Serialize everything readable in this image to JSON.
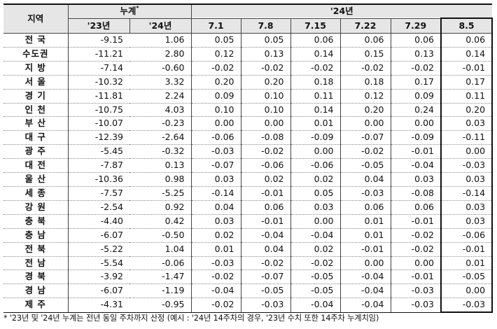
{
  "header": {
    "region_label": "지역",
    "cumulative_label": "누계",
    "cumulative_mark": "*",
    "year24_label": "'24년",
    "col_23": "'23년",
    "col_24": "'24년",
    "weeks": [
      "7.1",
      "7.8",
      "7.15",
      "7.22",
      "7.29",
      "8.5"
    ]
  },
  "rows": [
    {
      "region": "전 국",
      "cum23": "-9.15",
      "cum24": "1.06",
      "w": [
        "0.05",
        "0.05",
        "0.06",
        "0.06",
        "0.06",
        "0.06"
      ]
    },
    {
      "region": "수도권",
      "cum23": "-11.21",
      "cum24": "2.80",
      "w": [
        "0.12",
        "0.13",
        "0.14",
        "0.15",
        "0.13",
        "0.14"
      ]
    },
    {
      "region": "지 방",
      "cum23": "-7.14",
      "cum24": "-0.60",
      "w": [
        "-0.02",
        "-0.02",
        "-0.02",
        "-0.02",
        "-0.02",
        "-0.01"
      ]
    },
    {
      "region": "서 울",
      "cum23": "-10.32",
      "cum24": "3.32",
      "w": [
        "0.20",
        "0.20",
        "0.18",
        "0.18",
        "0.17",
        "0.17"
      ]
    },
    {
      "region": "경 기",
      "cum23": "-11.81",
      "cum24": "2.24",
      "w": [
        "0.09",
        "0.10",
        "0.11",
        "0.12",
        "0.09",
        "0.11"
      ]
    },
    {
      "region": "인 천",
      "cum23": "-10.75",
      "cum24": "4.03",
      "w": [
        "0.10",
        "0.10",
        "0.14",
        "0.20",
        "0.24",
        "0.20"
      ]
    },
    {
      "region": "부 산",
      "cum23": "-10.07",
      "cum24": "-0.23",
      "w": [
        "0.00",
        "0.00",
        "0.01",
        "0.00",
        "0.00",
        "0.03"
      ]
    },
    {
      "region": "대 구",
      "cum23": "-12.39",
      "cum24": "-2.64",
      "w": [
        "-0.06",
        "-0.08",
        "-0.09",
        "-0.07",
        "-0.09",
        "-0.11"
      ]
    },
    {
      "region": "광 주",
      "cum23": "-5.45",
      "cum24": "-0.32",
      "w": [
        "-0.03",
        "-0.02",
        "0.00",
        "-0.02",
        "-0.01",
        "0.00"
      ]
    },
    {
      "region": "대 전",
      "cum23": "-7.87",
      "cum24": "0.13",
      "w": [
        "-0.07",
        "-0.06",
        "-0.06",
        "-0.05",
        "-0.04",
        "-0.03"
      ]
    },
    {
      "region": "울 산",
      "cum23": "-10.36",
      "cum24": "0.98",
      "w": [
        "0.03",
        "0.02",
        "0.02",
        "0.04",
        "0.03",
        "0.03"
      ]
    },
    {
      "region": "세 종",
      "cum23": "-7.57",
      "cum24": "-5.25",
      "w": [
        "-0.14",
        "-0.01",
        "0.05",
        "-0.03",
        "-0.08",
        "-0.14"
      ]
    },
    {
      "region": "강 원",
      "cum23": "-2.54",
      "cum24": "0.92",
      "w": [
        "0.04",
        "0.06",
        "0.03",
        "0.06",
        "0.06",
        "0.03"
      ]
    },
    {
      "region": "충 북",
      "cum23": "-4.40",
      "cum24": "0.42",
      "w": [
        "0.03",
        "-0.01",
        "0.00",
        "0.01",
        "-0.01",
        "0.03"
      ]
    },
    {
      "region": "충 남",
      "cum23": "-6.07",
      "cum24": "-0.50",
      "w": [
        "0.02",
        "-0.04",
        "-0.04",
        "0.01",
        "-0.02",
        "-0.06"
      ]
    },
    {
      "region": "전 북",
      "cum23": "-5.22",
      "cum24": "1.04",
      "w": [
        "0.01",
        "0.04",
        "0.02",
        "-0.01",
        "-0.02",
        "-0.01"
      ]
    },
    {
      "region": "전 남",
      "cum23": "-5.54",
      "cum24": "-0.06",
      "w": [
        "-0.03",
        "-0.02",
        "-0.02",
        "0.00",
        "0.00",
        "0.01"
      ]
    },
    {
      "region": "경 북",
      "cum23": "-3.92",
      "cum24": "-1.47",
      "w": [
        "-0.02",
        "-0.07",
        "-0.05",
        "-0.04",
        "-0.01",
        "-0.05"
      ]
    },
    {
      "region": "경 남",
      "cum23": "-6.07",
      "cum24": "-1.19",
      "w": [
        "-0.04",
        "-0.05",
        "-0.05",
        "-0.04",
        "-0.03",
        "0.00"
      ]
    },
    {
      "region": "제 주",
      "cum23": "-4.31",
      "cum24": "-0.95",
      "w": [
        "-0.02",
        "-0.03",
        "-0.04",
        "-0.04",
        "-0.03",
        "-0.03"
      ]
    }
  ],
  "footnote": "* '23년 및 '24년 누계는 전년 동일 주차까지 산정 (예시 : '24년 14주차의 경우, '23년 수치 또한 14주차 누계치임)"
}
